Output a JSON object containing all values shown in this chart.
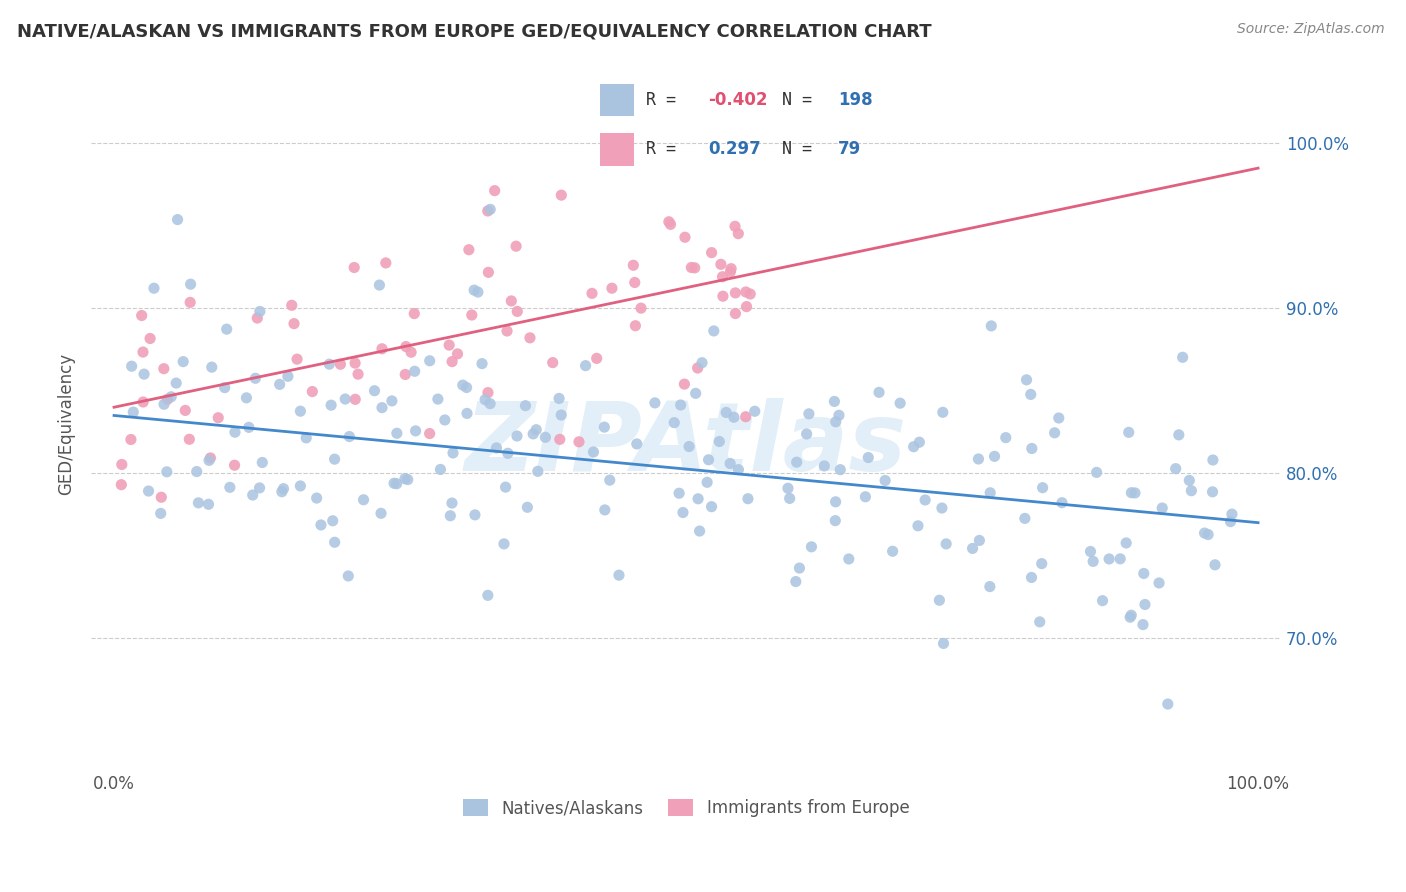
{
  "title": "NATIVE/ALASKAN VS IMMIGRANTS FROM EUROPE GED/EQUIVALENCY CORRELATION CHART",
  "source": "Source: ZipAtlas.com",
  "ylabel": "GED/Equivalency",
  "xlim": [
    -2,
    102
  ],
  "ylim": [
    62.0,
    104.0
  ],
  "yticks": [
    70.0,
    80.0,
    90.0,
    100.0
  ],
  "ytick_labels_right": [
    "70.0%",
    "80.0%",
    "90.0%",
    "100.0%"
  ],
  "xticks": [
    0.0,
    100.0
  ],
  "xtick_labels": [
    "0.0%",
    "100.0%"
  ],
  "legend_R1": "-0.402",
  "legend_N1": "198",
  "legend_R2": "0.297",
  "legend_N2": "79",
  "color_blue": "#aac4e0",
  "color_pink": "#f0a0b8",
  "color_blue_line": "#4488cc",
  "color_pink_line": "#e06080",
  "color_text_blue": "#3070b0",
  "color_text_R": "#e05070",
  "watermark": "ZIPAtlas",
  "background": "#ffffff",
  "grid_color": "#cccccc",
  "blue_line_start_y": 83.5,
  "blue_line_end_y": 77.0,
  "pink_line_start_y": 84.0,
  "pink_line_end_y": 98.5
}
